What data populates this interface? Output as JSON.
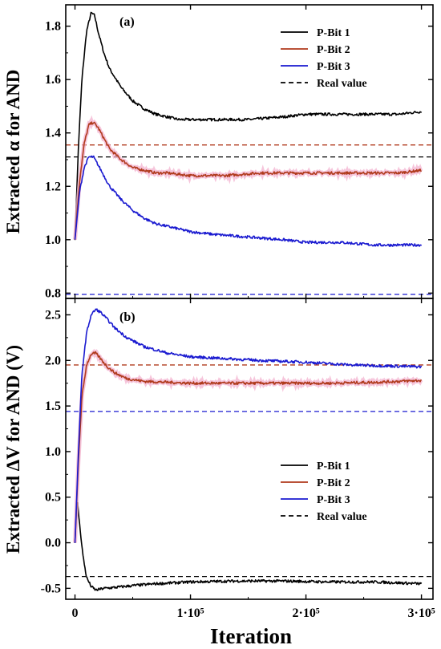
{
  "xlabel": "Iteration",
  "xticks": [
    {
      "value": 0,
      "label": "0"
    },
    {
      "value": 100000,
      "label": "1·10⁵"
    },
    {
      "value": 200000,
      "label": "2·10⁵"
    },
    {
      "value": 300000,
      "label": "3·10⁵"
    }
  ],
  "chart_data": [
    {
      "type": "line",
      "panel_label": "(a)",
      "ylabel": "Extracted α for AND",
      "xlim": [
        -8000,
        310000
      ],
      "ylim": [
        0.78,
        1.88
      ],
      "yticks": [
        0.8,
        1.0,
        1.2,
        1.4,
        1.6,
        1.8
      ],
      "ytick_labels": [
        "0.8",
        "1.0",
        "1.2",
        "1.4",
        "1.6",
        "1.8"
      ],
      "legend": [
        {
          "label": "P-Bit 1",
          "color": "#000000",
          "dashed": false
        },
        {
          "label": "P-Bit 2",
          "color": "#b03a1c",
          "dashed": false
        },
        {
          "label": "P-Bit 3",
          "color": "#1a1ad0",
          "dashed": false
        },
        {
          "label": "Real value",
          "color": "#000000",
          "dashed": true
        }
      ],
      "series": [
        {
          "name": "P-Bit 1",
          "color": "#000000",
          "x": [
            0,
            3000,
            6000,
            10000,
            14000,
            17000,
            20000,
            25000,
            30000,
            40000,
            50000,
            60000,
            70000,
            80000,
            90000,
            100000,
            120000,
            150000,
            180000,
            200000,
            230000,
            260000,
            280000,
            300000
          ],
          "y": [
            1.0,
            1.35,
            1.6,
            1.78,
            1.85,
            1.84,
            1.78,
            1.7,
            1.64,
            1.57,
            1.52,
            1.49,
            1.47,
            1.46,
            1.45,
            1.45,
            1.45,
            1.45,
            1.46,
            1.47,
            1.47,
            1.47,
            1.47,
            1.48
          ]
        },
        {
          "name": "P-Bit 2",
          "color": "#b03a1c",
          "x": [
            0,
            4000,
            8000,
            12000,
            16000,
            20000,
            25000,
            30000,
            40000,
            50000,
            60000,
            70000,
            80000,
            100000,
            130000,
            160000,
            190000,
            220000,
            250000,
            280000,
            300000
          ],
          "y": [
            1.0,
            1.22,
            1.36,
            1.43,
            1.44,
            1.42,
            1.38,
            1.34,
            1.3,
            1.27,
            1.26,
            1.25,
            1.25,
            1.24,
            1.24,
            1.25,
            1.25,
            1.25,
            1.25,
            1.25,
            1.26
          ]
        },
        {
          "name": "P-Bit 3",
          "color": "#1a1ad0",
          "x": [
            0,
            4000,
            8000,
            12000,
            16000,
            20000,
            25000,
            30000,
            40000,
            50000,
            60000,
            70000,
            80000,
            90000,
            100000,
            120000,
            150000,
            180000,
            200000,
            230000,
            260000,
            280000,
            300000
          ],
          "y": [
            1.0,
            1.18,
            1.27,
            1.31,
            1.31,
            1.28,
            1.24,
            1.2,
            1.15,
            1.11,
            1.08,
            1.06,
            1.05,
            1.04,
            1.03,
            1.02,
            1.01,
            1.0,
            0.99,
            0.99,
            0.98,
            0.98,
            0.98
          ]
        }
      ],
      "real_values": [
        {
          "name": "P-Bit 1",
          "y": 1.31,
          "color": "#000000"
        },
        {
          "name": "P-Bit 2",
          "y": 1.355,
          "color": "#b03a1c"
        },
        {
          "name": "P-Bit 3",
          "y": 0.795,
          "color": "#1a1ad0"
        }
      ],
      "legend_placement": "top-right"
    },
    {
      "type": "line",
      "panel_label": "(b)",
      "ylabel": "Extracted ΔV for AND (V)",
      "xlim": [
        -8000,
        310000
      ],
      "ylim": [
        -0.62,
        2.68
      ],
      "yticks": [
        -0.5,
        0.0,
        0.5,
        1.0,
        1.5,
        2.0,
        2.5
      ],
      "ytick_labels": [
        "-0.5",
        "0.0",
        "0.5",
        "1.0",
        "1.5",
        "2.0",
        "2.5"
      ],
      "legend": [
        {
          "label": "P-Bit 1",
          "color": "#000000",
          "dashed": false
        },
        {
          "label": "P-Bit 2",
          "color": "#b03a1c",
          "dashed": false
        },
        {
          "label": "P-Bit 3",
          "color": "#1a1ad0",
          "dashed": false
        },
        {
          "label": "Real value",
          "color": "#000000",
          "dashed": true
        }
      ],
      "series": [
        {
          "name": "P-Bit 1",
          "color": "#000000",
          "x": [
            0,
            2000,
            4000,
            7000,
            10000,
            14000,
            18000,
            25000,
            35000,
            50000,
            70000,
            100000,
            140000,
            180000,
            220000,
            260000,
            300000
          ],
          "y": [
            0.0,
            0.48,
            0.2,
            -0.15,
            -0.38,
            -0.48,
            -0.52,
            -0.5,
            -0.49,
            -0.47,
            -0.45,
            -0.43,
            -0.42,
            -0.42,
            -0.43,
            -0.43,
            -0.45
          ]
        },
        {
          "name": "P-Bit 2",
          "color": "#b03a1c",
          "x": [
            0,
            3000,
            6000,
            10000,
            14000,
            18000,
            22000,
            28000,
            35000,
            45000,
            60000,
            80000,
            100000,
            140000,
            180000,
            220000,
            260000,
            300000
          ],
          "y": [
            0.0,
            0.9,
            1.6,
            1.95,
            2.07,
            2.08,
            2.02,
            1.93,
            1.86,
            1.8,
            1.77,
            1.76,
            1.75,
            1.75,
            1.75,
            1.75,
            1.76,
            1.78
          ]
        },
        {
          "name": "P-Bit 3",
          "color": "#1a1ad0",
          "x": [
            0,
            3000,
            6000,
            10000,
            14000,
            18000,
            22000,
            28000,
            35000,
            45000,
            60000,
            80000,
            100000,
            130000,
            160000,
            200000,
            240000,
            270000,
            300000
          ],
          "y": [
            0.0,
            1.0,
            1.85,
            2.3,
            2.5,
            2.56,
            2.53,
            2.45,
            2.35,
            2.25,
            2.15,
            2.08,
            2.04,
            2.02,
            2.0,
            1.98,
            1.95,
            1.94,
            1.93
          ]
        }
      ],
      "real_values": [
        {
          "name": "P-Bit 1",
          "y": -0.37,
          "color": "#000000"
        },
        {
          "name": "P-Bit 2",
          "y": 1.95,
          "color": "#b03a1c"
        },
        {
          "name": "P-Bit 3",
          "y": 1.44,
          "color": "#1a1ad0"
        }
      ],
      "legend_placement": "bottom-right"
    }
  ]
}
